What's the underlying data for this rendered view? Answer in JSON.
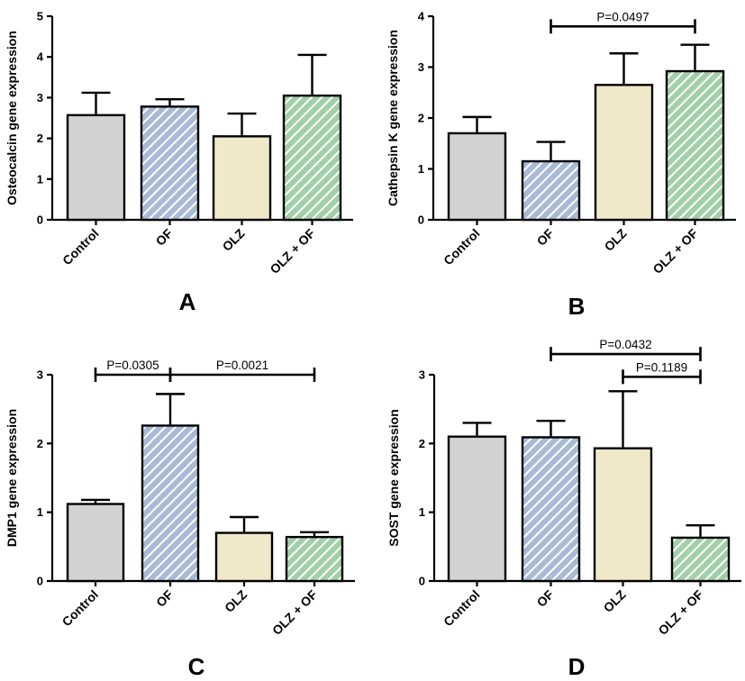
{
  "colors": {
    "Control": "#d3d3d3",
    "OF": "#a9bad6",
    "OLZ": "#efe8c9",
    "OLZ + OF": "#a2cfa8",
    "hatch": "#ffffff"
  },
  "chart_data": [
    {
      "type": "bar",
      "panel": "A",
      "ylabel": "Osteocalcin gene expression",
      "categories": [
        "Control",
        "OF",
        "OLZ",
        "OLZ + OF"
      ],
      "values": [
        2.57,
        2.78,
        2.05,
        3.05
      ],
      "errors": [
        0.55,
        0.18,
        0.56,
        1.0
      ],
      "ylim": [
        0,
        5
      ],
      "yticks": [
        0,
        1,
        2,
        3,
        4,
        5
      ],
      "significance": []
    },
    {
      "type": "bar",
      "panel": "B",
      "ylabel": "Cathepsin K gene expression",
      "categories": [
        "Control",
        "OF",
        "OLZ",
        "OLZ + OF"
      ],
      "values": [
        1.7,
        1.15,
        2.65,
        2.92
      ],
      "errors": [
        0.32,
        0.38,
        0.62,
        0.52
      ],
      "ylim": [
        0,
        4
      ],
      "yticks": [
        0,
        1,
        2,
        3,
        4
      ],
      "significance": [
        {
          "from": 1,
          "to": 3,
          "y": 3.8,
          "label": "P=0.0497"
        }
      ]
    },
    {
      "type": "bar",
      "panel": "C",
      "ylabel": "DMP1 gene expression",
      "categories": [
        "Control",
        "OF",
        "OLZ",
        "OLZ + OF"
      ],
      "values": [
        1.12,
        2.26,
        0.7,
        0.64
      ],
      "errors": [
        0.06,
        0.46,
        0.23,
        0.07
      ],
      "ylim": [
        0,
        3
      ],
      "yticks": [
        0,
        1,
        2,
        3
      ],
      "significance": [
        {
          "from": 0,
          "to": 1,
          "y": 3.0,
          "label": "P=0.0305"
        },
        {
          "from": 1,
          "to": 3,
          "y": 3.0,
          "label": "P=0.0021"
        }
      ]
    },
    {
      "type": "bar",
      "panel": "D",
      "ylabel": "SOST gene expression",
      "categories": [
        "Control",
        "OF",
        "OLZ",
        "OLZ + OF"
      ],
      "values": [
        2.1,
        2.09,
        1.93,
        0.63
      ],
      "errors": [
        0.2,
        0.24,
        0.83,
        0.18
      ],
      "ylim": [
        0,
        3
      ],
      "yticks": [
        0,
        1,
        2,
        3
      ],
      "significance": [
        {
          "from": 1,
          "to": 3,
          "y": 3.3,
          "label": "P=0.0432"
        },
        {
          "from": 2,
          "to": 3,
          "y": 2.97,
          "label": "P=0.1189"
        }
      ]
    }
  ]
}
